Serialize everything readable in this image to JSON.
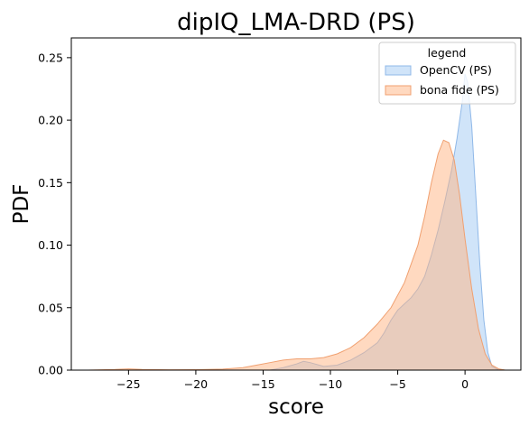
{
  "chart_data": {
    "type": "area",
    "title": "dipIQ_LMA-DRD (PS)",
    "xlabel": "score",
    "ylabel": "PDF",
    "xlim": [
      -29.25,
      4.15
    ],
    "ylim": [
      0,
      0.2658
    ],
    "x_ticks": [
      -25,
      -20,
      -15,
      -10,
      -5,
      0
    ],
    "x_tick_labels": [
      "−25",
      "−20",
      "−15",
      "−10",
      "−5",
      "0"
    ],
    "y_ticks": [
      0,
      0.05,
      0.1,
      0.15,
      0.2,
      0.25
    ],
    "y_tick_labels": [
      "0.00",
      "0.05",
      "0.10",
      "0.15",
      "0.20",
      "0.25"
    ],
    "grid": false,
    "legend": {
      "title": "legend",
      "position": "top-right",
      "entries": [
        {
          "name": "OpenCV (PS)",
          "fill": "#a1c9f4",
          "stroke": "#8fb8e8"
        },
        {
          "name": "bona fide (PS)",
          "fill": "#ffb482",
          "stroke": "#f0a070"
        }
      ]
    },
    "series": [
      {
        "name": "OpenCV (PS)",
        "color": "#a1c9f4",
        "x": [
          -14.5,
          -13.5,
          -12.5,
          -12.0,
          -11.5,
          -10.5,
          -9.5,
          -8.5,
          -7.5,
          -6.5,
          -6.0,
          -5.5,
          -5.0,
          -4.5,
          -4.0,
          -3.5,
          -3.0,
          -2.5,
          -2.0,
          -1.5,
          -1.0,
          -0.6,
          -0.2,
          0.0,
          0.2,
          0.5,
          0.8,
          1.1,
          1.4,
          1.7,
          2.0,
          2.5
        ],
        "y": [
          0.0,
          0.002,
          0.005,
          0.007,
          0.006,
          0.003,
          0.004,
          0.008,
          0.014,
          0.022,
          0.03,
          0.04,
          0.048,
          0.053,
          0.058,
          0.065,
          0.075,
          0.092,
          0.112,
          0.135,
          0.16,
          0.185,
          0.215,
          0.237,
          0.23,
          0.195,
          0.14,
          0.085,
          0.04,
          0.014,
          0.003,
          0.0
        ]
      },
      {
        "name": "bona fide (PS)",
        "color": "#ffb482",
        "x": [
          -28.0,
          -26.0,
          -25.0,
          -24.0,
          -22.0,
          -20.0,
          -18.0,
          -16.5,
          -15.5,
          -14.5,
          -13.5,
          -12.5,
          -11.5,
          -10.5,
          -9.5,
          -8.5,
          -7.5,
          -6.5,
          -5.5,
          -4.5,
          -3.5,
          -3.0,
          -2.5,
          -2.0,
          -1.6,
          -1.2,
          -0.8,
          -0.4,
          0.0,
          0.5,
          1.0,
          1.5,
          2.0,
          2.5,
          3.0
        ],
        "y": [
          0.0,
          0.0005,
          0.001,
          0.0005,
          0.0003,
          0.0004,
          0.0008,
          0.002,
          0.004,
          0.006,
          0.008,
          0.009,
          0.009,
          0.01,
          0.013,
          0.018,
          0.026,
          0.037,
          0.05,
          0.07,
          0.1,
          0.123,
          0.15,
          0.173,
          0.184,
          0.182,
          0.168,
          0.14,
          0.105,
          0.065,
          0.033,
          0.013,
          0.004,
          0.001,
          0.0
        ]
      }
    ]
  }
}
